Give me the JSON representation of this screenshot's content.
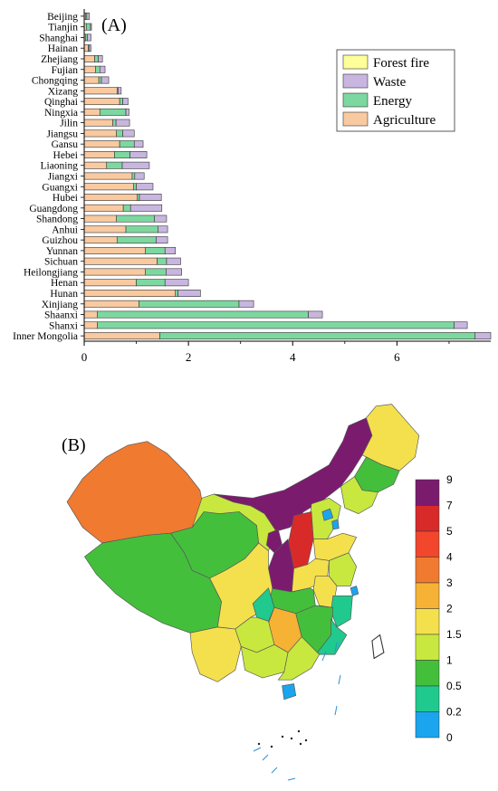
{
  "chart_data": [
    {
      "type": "bar",
      "orientation": "horizontal",
      "stacked": true,
      "panel_label": "(A)",
      "categories": [
        "Beijing",
        "Tianjin",
        "Shanghai",
        "Hainan",
        "Zhejiang",
        "Fujian",
        "Chongqing",
        "Xizang",
        "Qinghai",
        "Ningxia",
        "Jilin",
        "Jiangsu",
        "Gansu",
        "Hebei",
        "Liaoning",
        "Jiangxi",
        "Guangxi",
        "Hubei",
        "Guangdong",
        "Shandong",
        "Anhui",
        "Guizhou",
        "Yunnan",
        "Sichuan",
        "Heilongjiang",
        "Henan",
        "Hunan",
        "Xinjiang",
        "Shaanxi",
        "Shanxi",
        "Inner Mongolia"
      ],
      "series": [
        {
          "name": "Agriculture",
          "color": "#f9c9a0",
          "values": [
            0.03,
            0.04,
            0.03,
            0.08,
            0.2,
            0.22,
            0.28,
            0.63,
            0.68,
            0.3,
            0.55,
            0.62,
            0.68,
            0.58,
            0.43,
            0.92,
            0.95,
            1.02,
            0.75,
            0.62,
            0.8,
            0.63,
            1.17,
            1.4,
            1.17,
            1.0,
            1.75,
            1.05,
            0.25,
            0.25,
            1.45
          ]
        },
        {
          "name": "Energy",
          "color": "#7dd8a0",
          "values": [
            0.02,
            0.08,
            0.03,
            0.02,
            0.07,
            0.08,
            0.05,
            0.02,
            0.06,
            0.5,
            0.06,
            0.12,
            0.28,
            0.3,
            0.3,
            0.05,
            0.05,
            0.04,
            0.14,
            0.73,
            0.62,
            0.75,
            0.38,
            0.18,
            0.4,
            0.55,
            0.05,
            1.92,
            4.05,
            6.85,
            6.05
          ]
        },
        {
          "name": "Waste",
          "color": "#c8b6e0",
          "values": [
            0.05,
            0.02,
            0.07,
            0.03,
            0.08,
            0.1,
            0.14,
            0.06,
            0.1,
            0.06,
            0.26,
            0.22,
            0.17,
            0.32,
            0.52,
            0.18,
            0.32,
            0.42,
            0.6,
            0.23,
            0.18,
            0.22,
            0.2,
            0.27,
            0.3,
            0.45,
            0.43,
            0.28,
            0.27,
            0.25,
            0.3
          ]
        },
        {
          "name": "Forest fire",
          "color": "#ffff99",
          "values": [
            0,
            0,
            0,
            0,
            0,
            0,
            0,
            0,
            0,
            0,
            0,
            0,
            0,
            0,
            0,
            0,
            0,
            0,
            0,
            0,
            0,
            0,
            0,
            0,
            0,
            0,
            0,
            0,
            0,
            0,
            0
          ]
        }
      ],
      "legend_order": [
        "Forest fire",
        "Waste",
        "Energy",
        "Agriculture"
      ],
      "legend_position": "top-right",
      "xticks": [
        0,
        2,
        4,
        6
      ],
      "xlim": [
        0,
        7.8
      ],
      "grid": false
    },
    {
      "type": "heatmap",
      "subtype": "choropleth",
      "panel_label": "(B)",
      "colorbar": {
        "labels": [
          "9",
          "7",
          "5",
          "4",
          "3",
          "2",
          "1.5",
          "1",
          "0.5",
          "0.2",
          "0"
        ],
        "colors": [
          "#7b1b6e",
          "#d92a2a",
          "#f2462d",
          "#f07a30",
          "#f6b234",
          "#f4e04d",
          "#c8e83f",
          "#44bf3c",
          "#20c98e",
          "#1aa5ee"
        ]
      },
      "regions": [
        {
          "name": "Xinjiang",
          "color": "#f07a30"
        },
        {
          "name": "Xizang",
          "color": "#44bf3c"
        },
        {
          "name": "Qinghai",
          "color": "#44bf3c"
        },
        {
          "name": "Gansu",
          "color": "#c8e83f"
        },
        {
          "name": "Inner Mongolia",
          "color": "#7b1b6e"
        },
        {
          "name": "Heilongjiang",
          "color": "#f4e04d"
        },
        {
          "name": "Jilin",
          "color": "#44bf3c"
        },
        {
          "name": "Liaoning",
          "color": "#c8e83f"
        },
        {
          "name": "Hebei",
          "color": "#c8e83f"
        },
        {
          "name": "Beijing",
          "color": "#1aa5ee"
        },
        {
          "name": "Tianjin",
          "color": "#1aa5ee"
        },
        {
          "name": "Shanxi",
          "color": "#d92a2a"
        },
        {
          "name": "Shaanxi",
          "color": "#7b1b6e"
        },
        {
          "name": "Ningxia",
          "color": "#7b1b6e"
        },
        {
          "name": "Shandong",
          "color": "#f4e04d"
        },
        {
          "name": "Henan",
          "color": "#f4e04d"
        },
        {
          "name": "Jiangsu",
          "color": "#c8e83f"
        },
        {
          "name": "Anhui",
          "color": "#f4e04d"
        },
        {
          "name": "Hubei",
          "color": "#44bf3c"
        },
        {
          "name": "Shanghai",
          "color": "#1aa5ee"
        },
        {
          "name": "Zhejiang",
          "color": "#20c98e"
        },
        {
          "name": "Sichuan",
          "color": "#f4e04d"
        },
        {
          "name": "Chongqing",
          "color": "#20c98e"
        },
        {
          "name": "Hunan",
          "color": "#f6b234"
        },
        {
          "name": "Jiangxi",
          "color": "#44bf3c"
        },
        {
          "name": "Fujian",
          "color": "#20c98e"
        },
        {
          "name": "Guizhou",
          "color": "#c8e83f"
        },
        {
          "name": "Yunnan",
          "color": "#f4e04d"
        },
        {
          "name": "Guangxi",
          "color": "#c8e83f"
        },
        {
          "name": "Guangdong",
          "color": "#c8e83f"
        },
        {
          "name": "Hainan",
          "color": "#1aa5ee"
        }
      ]
    }
  ]
}
